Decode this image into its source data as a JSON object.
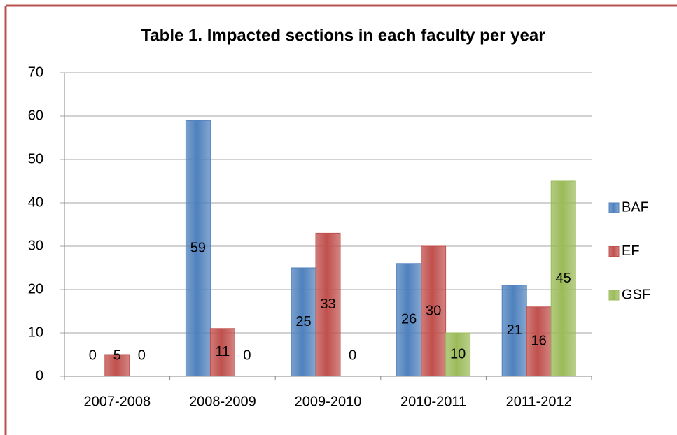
{
  "chart_data": {
    "type": "bar",
    "title": "Table 1. Impacted sections in each faculty per year",
    "categories": [
      "2007-2008",
      "2008-2009",
      "2009-2010",
      "2010-2011",
      "2011-2012"
    ],
    "series": [
      {
        "name": "BAF",
        "color": "#4f81bd",
        "values": [
          0,
          59,
          25,
          26,
          21
        ]
      },
      {
        "name": "EF",
        "color": "#c0504d",
        "values": [
          5,
          11,
          33,
          30,
          16
        ]
      },
      {
        "name": "GSF",
        "color": "#9bbb59",
        "values": [
          0,
          0,
          0,
          10,
          45
        ]
      }
    ],
    "ylim": [
      0,
      70
    ],
    "yticks": [
      0,
      10,
      20,
      30,
      40,
      50,
      60,
      70
    ],
    "grid": true,
    "legend": "right"
  }
}
